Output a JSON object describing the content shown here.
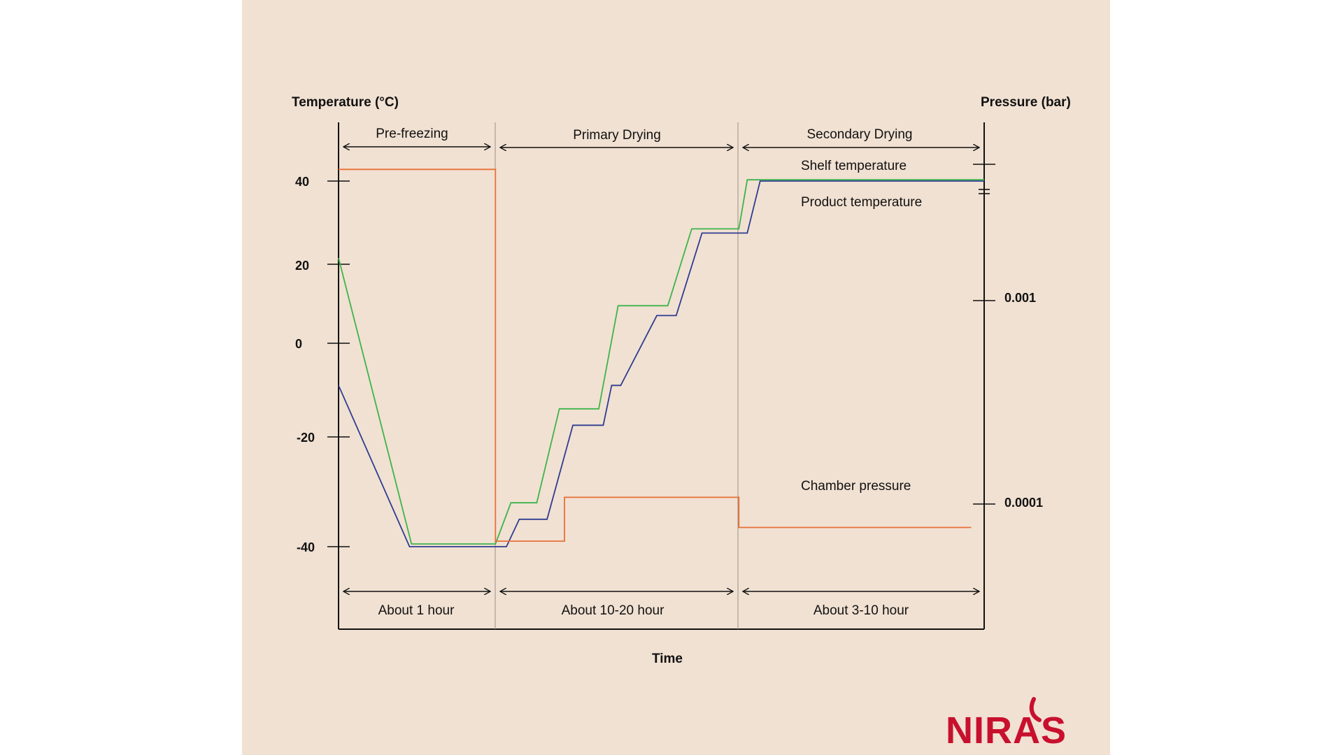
{
  "chart_data": {
    "type": "line",
    "xlabel": "Time",
    "ylabel_left": "Temperature (°C)",
    "ylabel_right": "Pressure (bar)",
    "yticks_left": [
      40,
      20,
      0,
      -20,
      -40
    ],
    "yticks_left_labels": [
      "40",
      "20",
      "0",
      "-20",
      "-40"
    ],
    "yticks_right_labels": [
      "0.001",
      "0.0001"
    ],
    "ylim": [
      -48,
      52
    ],
    "xlim": [
      0,
      100
    ],
    "phases": [
      {
        "label": "Pre-freezing",
        "duration": "About 1 hour",
        "x_start": 0,
        "x_end": 24.3
      },
      {
        "label": "Primary Drying",
        "duration": "About 10-20 hour",
        "x_start": 24.3,
        "x_end": 62
      },
      {
        "label": "Secondary Drying",
        "duration": "About 3-10 hour",
        "x_start": 62,
        "x_end": 100
      }
    ],
    "series": [
      {
        "name": "Shelf temperature",
        "color": "#3cb44b",
        "points": [
          [
            0,
            21.5
          ],
          [
            11.3,
            -39.5
          ],
          [
            24.3,
            -39.5
          ],
          [
            26.7,
            -32
          ],
          [
            30.7,
            -32
          ],
          [
            34.2,
            -14
          ],
          [
            40.3,
            -14
          ],
          [
            43.3,
            9.5
          ],
          [
            51,
            9.5
          ],
          [
            54.7,
            28.5
          ],
          [
            62,
            28.5
          ],
          [
            63.3,
            40.3
          ],
          [
            100,
            40.3
          ]
        ]
      },
      {
        "name": "Product temperature",
        "color": "#2e3d91",
        "points": [
          [
            0,
            -9
          ],
          [
            11,
            -40
          ],
          [
            26,
            -40
          ],
          [
            28,
            -35
          ],
          [
            32.3,
            -35
          ],
          [
            36.3,
            -17.5
          ],
          [
            41,
            -17.5
          ],
          [
            42.3,
            -9
          ],
          [
            43.7,
            -9
          ],
          [
            49.3,
            7
          ],
          [
            52.3,
            7
          ],
          [
            56.3,
            27.5
          ],
          [
            63.3,
            27.5
          ],
          [
            65.3,
            40
          ],
          [
            100,
            40
          ]
        ]
      },
      {
        "name": "Chamber pressure",
        "color": "#e8703a",
        "points": [
          [
            0,
            42.8
          ],
          [
            24.3,
            42.8
          ],
          [
            24.3,
            -39
          ],
          [
            35,
            -39
          ],
          [
            35,
            -31
          ],
          [
            62,
            -31
          ],
          [
            62,
            -36.5
          ],
          [
            98,
            -36.5
          ]
        ]
      }
    ]
  },
  "brand": {
    "logo_text": "NIRAS"
  }
}
